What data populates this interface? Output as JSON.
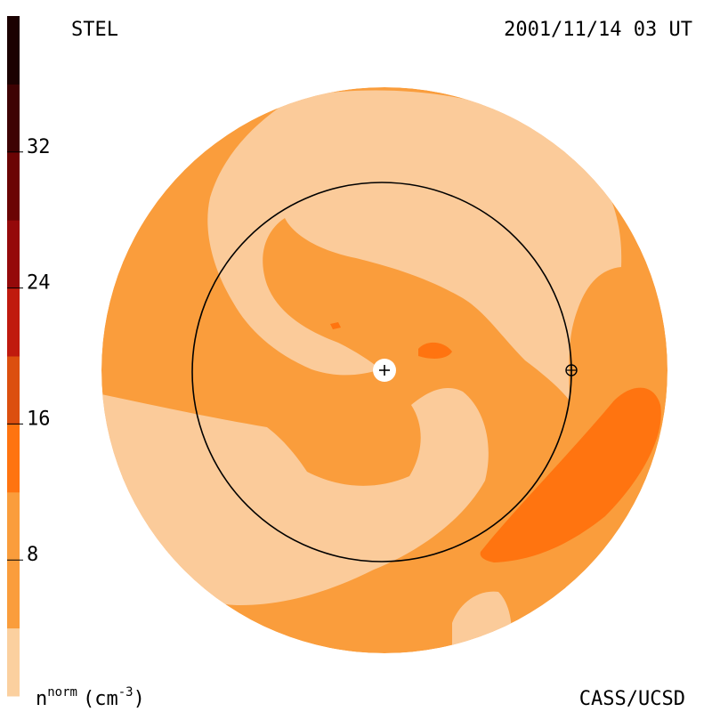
{
  "header": {
    "instrument": "STEL",
    "timestamp": "2001/11/14 03 UT"
  },
  "footer": {
    "credit": "CASS/UCSD"
  },
  "colorbar": {
    "unit_base": "n",
    "unit_sup": "norm",
    "unit_paren": "(cm",
    "unit_exp": "-3",
    "unit_close": ")",
    "range": [
      0,
      40
    ],
    "ticks": [
      {
        "value": 8,
        "label": "8"
      },
      {
        "value": 16,
        "label": "16"
      },
      {
        "value": 24,
        "label": "24"
      },
      {
        "value": 32,
        "label": "32"
      }
    ],
    "bands": [
      {
        "min": 0,
        "max": 4,
        "color": "#fbd09f"
      },
      {
        "min": 4,
        "max": 12,
        "color": "#fa9d3c"
      },
      {
        "min": 12,
        "max": 16,
        "color": "#ff7410"
      },
      {
        "min": 16,
        "max": 20,
        "color": "#dc4f0f"
      },
      {
        "min": 20,
        "max": 24,
        "color": "#c01a0e"
      },
      {
        "min": 24,
        "max": 28,
        "color": "#95090a"
      },
      {
        "min": 28,
        "max": 32,
        "color": "#6b0404"
      },
      {
        "min": 32,
        "max": 36,
        "color": "#3e0203"
      },
      {
        "min": 36,
        "max": 40,
        "color": "#1b0101"
      }
    ]
  },
  "map": {
    "colors": {
      "light": "#fbcb9a",
      "medium": "#fa9d3c",
      "dark": "#ff7410",
      "earth_ring": "#000000"
    },
    "icons": {
      "sun": "sun-plus-icon",
      "earth": "earth-circle-plus-icon"
    }
  }
}
